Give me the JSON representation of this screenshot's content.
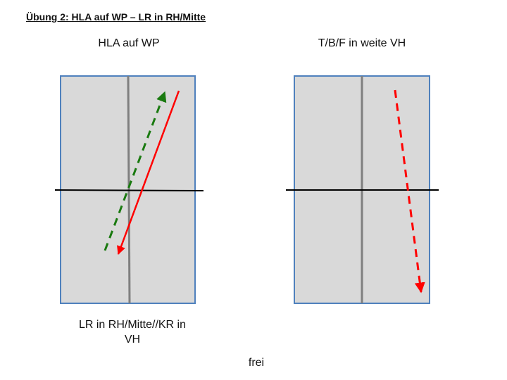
{
  "title": "Übung 2: HLA auf WP – LR in RH/Mitte",
  "left_diagram": {
    "top_label": "HLA auf WP",
    "bottom_label_line1": "LR in RH/Mitte//KR in",
    "bottom_label_line2": "VH"
  },
  "right_diagram": {
    "top_label": "T/B/F in weite VH"
  },
  "bottom_label": "frei",
  "colors": {
    "field_fill": "#d9d9d9",
    "field_border": "#4f81bd",
    "center_line": "#7f7f7f",
    "cross_line": "#000000",
    "solid_arrow": "#ff0000",
    "dashed_green_arrow": "#1a7a10",
    "dashed_red_arrow": "#ff0000"
  }
}
